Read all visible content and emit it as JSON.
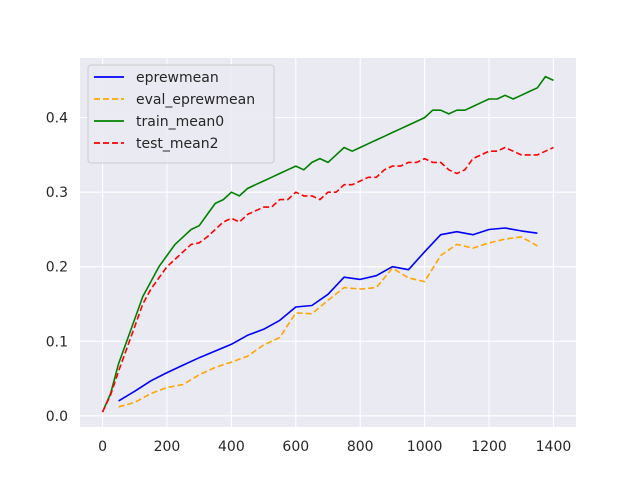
{
  "chart_data": {
    "type": "line",
    "title": "",
    "xlabel": "",
    "ylabel": "",
    "xlim": [
      -70,
      1470
    ],
    "ylim": [
      -0.015,
      0.48
    ],
    "xticks": [
      0,
      200,
      400,
      600,
      800,
      1000,
      1200,
      1400
    ],
    "xtick_labels": [
      "0",
      "200",
      "400",
      "600",
      "800",
      "1000",
      "1200",
      "1400"
    ],
    "yticks": [
      0.0,
      0.1,
      0.2,
      0.3,
      0.4
    ],
    "ytick_labels": [
      "0.0",
      "0.1",
      "0.2",
      "0.3",
      "0.4"
    ],
    "grid": true,
    "legend_position": "top-left",
    "series": [
      {
        "name": "eprewmean",
        "color": "#0000ff",
        "dash": "solid",
        "x": [
          50,
          100,
          150,
          200,
          250,
          300,
          350,
          400,
          450,
          500,
          550,
          600,
          650,
          700,
          750,
          800,
          850,
          900,
          950,
          1000,
          1050,
          1100,
          1150,
          1200,
          1250,
          1300,
          1350
        ],
        "y": [
          0.02,
          0.033,
          0.047,
          0.058,
          0.068,
          0.078,
          0.087,
          0.096,
          0.108,
          0.116,
          0.128,
          0.146,
          0.148,
          0.163,
          0.186,
          0.183,
          0.188,
          0.2,
          0.196,
          0.22,
          0.243,
          0.247,
          0.243,
          0.25,
          0.252,
          0.248,
          0.245
        ]
      },
      {
        "name": "eval_eprewmean",
        "color": "#ffa500",
        "dash": "dashed",
        "x": [
          50,
          100,
          150,
          200,
          250,
          300,
          350,
          400,
          450,
          500,
          550,
          600,
          650,
          700,
          750,
          800,
          850,
          900,
          950,
          1000,
          1050,
          1100,
          1150,
          1200,
          1250,
          1300,
          1350
        ],
        "y": [
          0.012,
          0.018,
          0.03,
          0.038,
          0.042,
          0.055,
          0.065,
          0.072,
          0.08,
          0.095,
          0.105,
          0.138,
          0.137,
          0.155,
          0.172,
          0.17,
          0.172,
          0.198,
          0.185,
          0.18,
          0.215,
          0.23,
          0.225,
          0.232,
          0.237,
          0.24,
          0.228
        ]
      },
      {
        "name": "train_mean0",
        "color": "#008000",
        "dash": "solid",
        "x": [
          0,
          25,
          50,
          75,
          100,
          125,
          150,
          175,
          200,
          225,
          250,
          275,
          300,
          325,
          350,
          375,
          400,
          425,
          450,
          475,
          500,
          525,
          550,
          575,
          600,
          625,
          650,
          675,
          700,
          725,
          750,
          775,
          800,
          825,
          850,
          875,
          900,
          925,
          950,
          975,
          1000,
          1025,
          1050,
          1075,
          1100,
          1125,
          1150,
          1175,
          1200,
          1225,
          1250,
          1275,
          1300,
          1325,
          1350,
          1375,
          1400
        ],
        "y": [
          0.005,
          0.03,
          0.07,
          0.1,
          0.13,
          0.16,
          0.18,
          0.2,
          0.215,
          0.23,
          0.24,
          0.25,
          0.255,
          0.27,
          0.285,
          0.29,
          0.3,
          0.295,
          0.305,
          0.31,
          0.315,
          0.32,
          0.325,
          0.33,
          0.335,
          0.33,
          0.34,
          0.345,
          0.34,
          0.35,
          0.36,
          0.355,
          0.36,
          0.365,
          0.37,
          0.375,
          0.38,
          0.385,
          0.39,
          0.395,
          0.4,
          0.41,
          0.41,
          0.405,
          0.41,
          0.41,
          0.415,
          0.42,
          0.425,
          0.425,
          0.43,
          0.425,
          0.43,
          0.435,
          0.44,
          0.455,
          0.45
        ]
      },
      {
        "name": "test_mean2",
        "color": "#ff0000",
        "dash": "dashed",
        "x": [
          0,
          25,
          50,
          75,
          100,
          125,
          150,
          175,
          200,
          225,
          250,
          275,
          300,
          325,
          350,
          375,
          400,
          425,
          450,
          475,
          500,
          525,
          550,
          575,
          600,
          625,
          650,
          675,
          700,
          725,
          750,
          775,
          800,
          825,
          850,
          875,
          900,
          925,
          950,
          975,
          1000,
          1025,
          1050,
          1075,
          1100,
          1125,
          1150,
          1175,
          1200,
          1225,
          1250,
          1275,
          1300,
          1325,
          1350,
          1375,
          1400
        ],
        "y": [
          0.005,
          0.028,
          0.06,
          0.09,
          0.12,
          0.15,
          0.17,
          0.185,
          0.2,
          0.21,
          0.22,
          0.23,
          0.232,
          0.24,
          0.25,
          0.26,
          0.265,
          0.26,
          0.27,
          0.275,
          0.28,
          0.28,
          0.29,
          0.29,
          0.3,
          0.295,
          0.295,
          0.29,
          0.3,
          0.3,
          0.31,
          0.31,
          0.315,
          0.32,
          0.32,
          0.33,
          0.335,
          0.335,
          0.34,
          0.34,
          0.345,
          0.34,
          0.34,
          0.33,
          0.325,
          0.33,
          0.345,
          0.35,
          0.355,
          0.355,
          0.36,
          0.355,
          0.35,
          0.35,
          0.35,
          0.355,
          0.36
        ]
      }
    ]
  }
}
